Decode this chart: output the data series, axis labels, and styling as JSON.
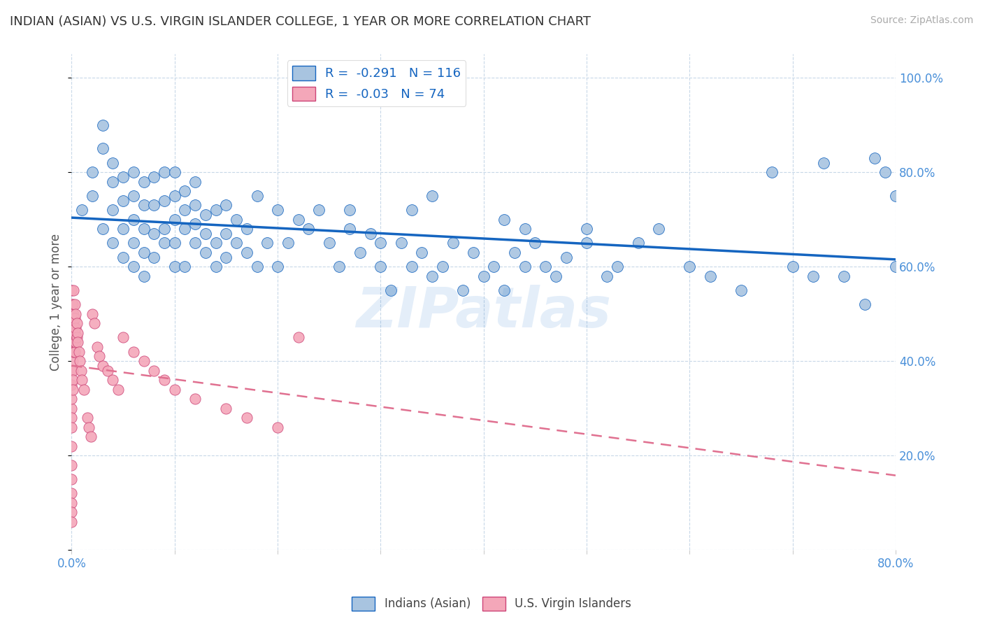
{
  "title": "INDIAN (ASIAN) VS U.S. VIRGIN ISLANDER COLLEGE, 1 YEAR OR MORE CORRELATION CHART",
  "source": "Source: ZipAtlas.com",
  "ylabel": "College, 1 year or more",
  "xlim": [
    0.0,
    0.8
  ],
  "ylim": [
    0.0,
    1.05
  ],
  "x_ticks": [
    0.0,
    0.1,
    0.2,
    0.3,
    0.4,
    0.5,
    0.6,
    0.7,
    0.8
  ],
  "y_ticks": [
    0.0,
    0.2,
    0.4,
    0.6,
    0.8,
    1.0
  ],
  "blue_R": -0.291,
  "blue_N": 116,
  "pink_R": -0.03,
  "pink_N": 74,
  "blue_color": "#a8c4e0",
  "pink_color": "#f4a7b9",
  "blue_line_color": "#1565c0",
  "pink_line_color": "#e07090",
  "legend_label_blue": "Indians (Asian)",
  "legend_label_pink": "U.S. Virgin Islanders",
  "watermark": "ZIPatlas",
  "background_color": "#ffffff",
  "grid_color": "#c8d8e8",
  "blue_scatter_x": [
    0.01,
    0.02,
    0.02,
    0.03,
    0.03,
    0.03,
    0.04,
    0.04,
    0.04,
    0.04,
    0.05,
    0.05,
    0.05,
    0.05,
    0.06,
    0.06,
    0.06,
    0.06,
    0.06,
    0.07,
    0.07,
    0.07,
    0.07,
    0.07,
    0.08,
    0.08,
    0.08,
    0.08,
    0.09,
    0.09,
    0.09,
    0.09,
    0.1,
    0.1,
    0.1,
    0.1,
    0.1,
    0.11,
    0.11,
    0.11,
    0.11,
    0.12,
    0.12,
    0.12,
    0.12,
    0.13,
    0.13,
    0.13,
    0.14,
    0.14,
    0.14,
    0.15,
    0.15,
    0.15,
    0.16,
    0.16,
    0.17,
    0.17,
    0.18,
    0.18,
    0.19,
    0.2,
    0.2,
    0.21,
    0.22,
    0.23,
    0.24,
    0.25,
    0.26,
    0.27,
    0.27,
    0.28,
    0.29,
    0.3,
    0.3,
    0.31,
    0.32,
    0.33,
    0.34,
    0.35,
    0.36,
    0.37,
    0.38,
    0.39,
    0.4,
    0.41,
    0.42,
    0.43,
    0.44,
    0.45,
    0.46,
    0.47,
    0.48,
    0.5,
    0.5,
    0.52,
    0.53,
    0.55,
    0.57,
    0.6,
    0.62,
    0.65,
    0.68,
    0.7,
    0.72,
    0.73,
    0.75,
    0.77,
    0.78,
    0.79,
    0.8,
    0.8,
    0.33,
    0.35,
    0.42,
    0.44
  ],
  "blue_scatter_y": [
    0.72,
    0.8,
    0.75,
    0.68,
    0.85,
    0.9,
    0.65,
    0.72,
    0.78,
    0.82,
    0.62,
    0.68,
    0.74,
    0.79,
    0.6,
    0.65,
    0.7,
    0.75,
    0.8,
    0.58,
    0.63,
    0.68,
    0.73,
    0.78,
    0.62,
    0.67,
    0.73,
    0.79,
    0.65,
    0.68,
    0.74,
    0.8,
    0.6,
    0.65,
    0.7,
    0.75,
    0.8,
    0.68,
    0.72,
    0.76,
    0.6,
    0.65,
    0.69,
    0.73,
    0.78,
    0.63,
    0.67,
    0.71,
    0.6,
    0.65,
    0.72,
    0.62,
    0.67,
    0.73,
    0.65,
    0.7,
    0.63,
    0.68,
    0.6,
    0.75,
    0.65,
    0.6,
    0.72,
    0.65,
    0.7,
    0.68,
    0.72,
    0.65,
    0.6,
    0.68,
    0.72,
    0.63,
    0.67,
    0.6,
    0.65,
    0.55,
    0.65,
    0.6,
    0.63,
    0.58,
    0.6,
    0.65,
    0.55,
    0.63,
    0.58,
    0.6,
    0.55,
    0.63,
    0.6,
    0.65,
    0.6,
    0.58,
    0.62,
    0.65,
    0.68,
    0.58,
    0.6,
    0.65,
    0.68,
    0.6,
    0.58,
    0.55,
    0.8,
    0.6,
    0.58,
    0.82,
    0.58,
    0.52,
    0.83,
    0.8,
    0.75,
    0.6,
    0.72,
    0.75,
    0.7,
    0.68
  ],
  "pink_scatter_x": [
    0.0,
    0.0,
    0.0,
    0.0,
    0.0,
    0.0,
    0.0,
    0.0,
    0.0,
    0.0,
    0.0,
    0.0,
    0.0,
    0.0,
    0.0,
    0.0,
    0.0,
    0.0,
    0.0,
    0.0,
    0.001,
    0.001,
    0.001,
    0.001,
    0.001,
    0.001,
    0.001,
    0.001,
    0.001,
    0.001,
    0.002,
    0.002,
    0.002,
    0.002,
    0.002,
    0.003,
    0.003,
    0.003,
    0.003,
    0.003,
    0.004,
    0.004,
    0.004,
    0.005,
    0.005,
    0.006,
    0.006,
    0.007,
    0.008,
    0.009,
    0.01,
    0.012,
    0.015,
    0.017,
    0.019,
    0.02,
    0.022,
    0.025,
    0.027,
    0.03,
    0.035,
    0.04,
    0.045,
    0.05,
    0.06,
    0.07,
    0.08,
    0.09,
    0.1,
    0.12,
    0.15,
    0.17,
    0.2,
    0.22
  ],
  "pink_scatter_y": [
    0.52,
    0.48,
    0.55,
    0.45,
    0.5,
    0.43,
    0.47,
    0.38,
    0.35,
    0.3,
    0.32,
    0.28,
    0.26,
    0.22,
    0.18,
    0.15,
    0.12,
    0.1,
    0.08,
    0.06,
    0.52,
    0.5,
    0.48,
    0.46,
    0.44,
    0.42,
    0.4,
    0.38,
    0.36,
    0.34,
    0.55,
    0.5,
    0.45,
    0.48,
    0.42,
    0.52,
    0.49,
    0.46,
    0.44,
    0.42,
    0.5,
    0.47,
    0.44,
    0.48,
    0.45,
    0.46,
    0.44,
    0.42,
    0.4,
    0.38,
    0.36,
    0.34,
    0.28,
    0.26,
    0.24,
    0.5,
    0.48,
    0.43,
    0.41,
    0.39,
    0.38,
    0.36,
    0.34,
    0.45,
    0.42,
    0.4,
    0.38,
    0.36,
    0.34,
    0.32,
    0.3,
    0.28,
    0.26,
    0.45
  ]
}
